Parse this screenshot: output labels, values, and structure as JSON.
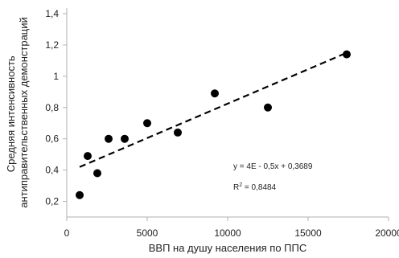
{
  "chart_data": {
    "type": "scatter",
    "xlabel": "ВВП на душу населения по ППС",
    "ylabel_lines": [
      "Средняя интенсивность",
      "антиправительственных демонстраций"
    ],
    "xlim": [
      0,
      20000
    ],
    "ylim": [
      0.1,
      1.4
    ],
    "xticks": [
      {
        "value": 0,
        "label": "0"
      },
      {
        "value": 5000,
        "label": "5000"
      },
      {
        "value": 10000,
        "label": "10000"
      },
      {
        "value": 15000,
        "label": "15000"
      },
      {
        "value": 20000,
        "label": "20000"
      }
    ],
    "yticks": [
      {
        "value": 0.2,
        "label": "0,2"
      },
      {
        "value": 0.4,
        "label": "0,4"
      },
      {
        "value": 0.6,
        "label": "0,6"
      },
      {
        "value": 0.8,
        "label": "0,8"
      },
      {
        "value": 1.0,
        "label": "1"
      },
      {
        "value": 1.2,
        "label": "1,2"
      },
      {
        "value": 1.4,
        "label": "1,4"
      }
    ],
    "grid": false,
    "points": [
      {
        "x": 800,
        "y": 0.24
      },
      {
        "x": 1300,
        "y": 0.49
      },
      {
        "x": 1900,
        "y": 0.38
      },
      {
        "x": 2600,
        "y": 0.6
      },
      {
        "x": 3600,
        "y": 0.6
      },
      {
        "x": 5000,
        "y": 0.7
      },
      {
        "x": 6900,
        "y": 0.64
      },
      {
        "x": 9200,
        "y": 0.89
      },
      {
        "x": 12500,
        "y": 0.8
      },
      {
        "x": 17400,
        "y": 1.14
      }
    ],
    "trendline": {
      "x": [
        800,
        17400
      ],
      "y": [
        0.42,
        1.15
      ],
      "style": "dashed"
    },
    "equation_label": "y = 4E - 0,5x + 0,3689",
    "r_squared": {
      "label": "R",
      "sup": "2",
      "value": " = 0,8484"
    },
    "colors": {
      "points": "#000000",
      "axis": "#b0b0b0",
      "trend": "#000000"
    }
  }
}
